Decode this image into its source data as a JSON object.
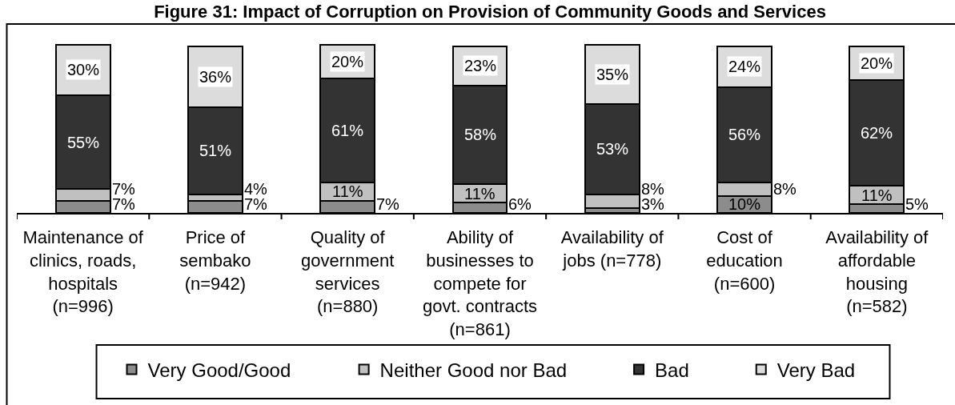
{
  "chart_data": {
    "type": "bar",
    "stacked": true,
    "title": "Figure 31: Impact of Corruption on Provision of Community Goods and Services",
    "categories": [
      "Maintenance of\nclinics, roads,\nhospitals\n(n=996)",
      "Price of\nsembako\n(n=942)",
      "Quality of\ngovernment\nservices\n(n=880)",
      "Ability of\nbusinesses to\ncompete for\ngovt. contracts\n(n=861)",
      "Availability of\njobs (n=778)",
      "Cost of\neducation\n(n=600)",
      "Availability of\naffordable\nhousing\n(n=582)"
    ],
    "series": [
      {
        "name": "Very Good/Good",
        "color": "#8c8c8c",
        "values": [
          7,
          7,
          7,
          6,
          3,
          10,
          5
        ],
        "value_labels": [
          "7%",
          "7%",
          "7%",
          "6%",
          "3%",
          "10%",
          "5%"
        ]
      },
      {
        "name": "Neither Good nor Bad",
        "color": "#c0c0c0",
        "values": [
          7,
          4,
          11,
          11,
          8,
          8,
          11
        ],
        "value_labels": [
          "7%",
          "4%",
          "11%",
          "11%",
          "8%",
          "8%",
          "11%"
        ]
      },
      {
        "name": "Bad",
        "color": "#333333",
        "values": [
          55,
          51,
          61,
          58,
          53,
          56,
          62
        ],
        "value_labels": [
          "55%",
          "51%",
          "61%",
          "58%",
          "53%",
          "56%",
          "62%"
        ]
      },
      {
        "name": "Very Bad",
        "color": "#dcdcdc",
        "values": [
          30,
          36,
          20,
          23,
          35,
          24,
          20
        ],
        "value_labels": [
          "30%",
          "36%",
          "20%",
          "23%",
          "35%",
          "24%",
          "20%"
        ]
      }
    ],
    "legend": "bottom"
  }
}
